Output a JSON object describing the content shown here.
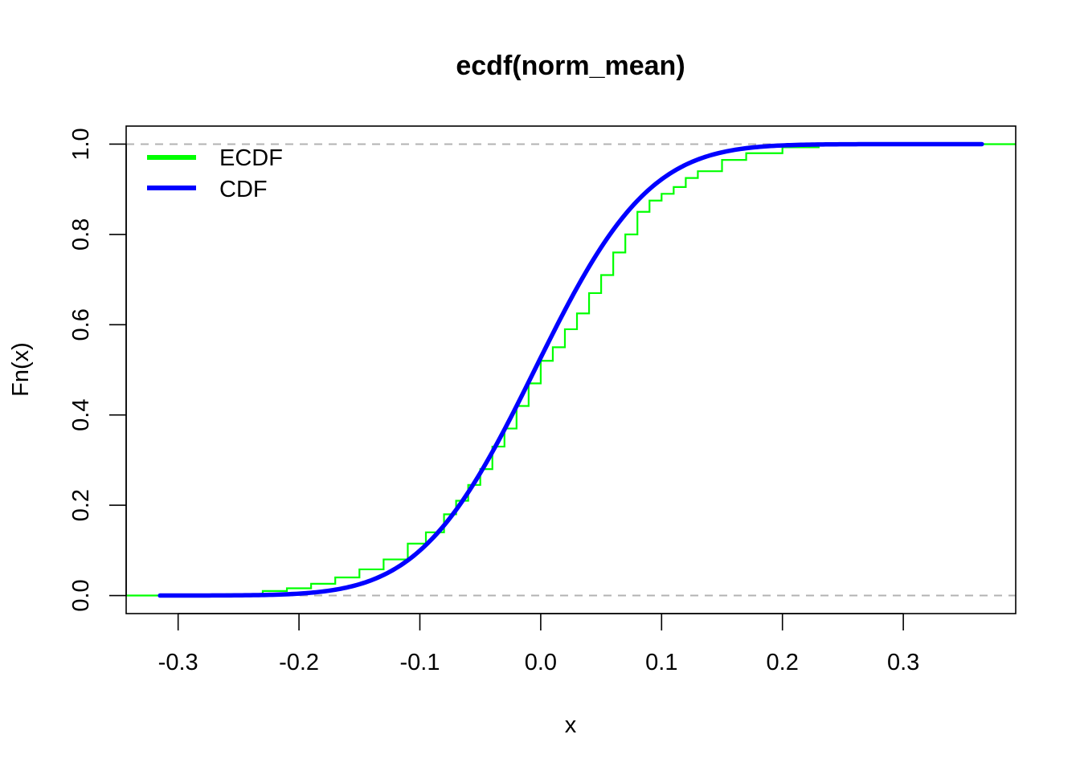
{
  "chart_data": {
    "type": "line",
    "title": "ecdf(norm_mean)",
    "xlabel": "x",
    "ylabel": "Fn(x)",
    "xlim": [
      -0.343,
      0.393
    ],
    "ylim": [
      -0.04,
      1.04
    ],
    "x_ticks": [
      "-0.3",
      "-0.2",
      "-0.1",
      "0.0",
      "0.1",
      "0.2",
      "0.3"
    ],
    "x_tick_values": [
      -0.3,
      -0.2,
      -0.1,
      0.0,
      0.1,
      0.2,
      0.3
    ],
    "y_ticks": [
      "0.0",
      "0.2",
      "0.4",
      "0.6",
      "0.8",
      "1.0"
    ],
    "y_tick_values": [
      0.0,
      0.2,
      0.4,
      0.6,
      0.8,
      1.0
    ],
    "reference_lines": [
      0.0,
      1.0
    ],
    "grid": false,
    "legend": {
      "position": "top-left",
      "entries": [
        "ECDF",
        "CDF"
      ]
    },
    "series": [
      {
        "name": "ECDF",
        "color": "#00ff00",
        "points": [
          [
            -0.343,
            0.0
          ],
          [
            -0.315,
            0.0
          ],
          [
            -0.26,
            0.003
          ],
          [
            -0.23,
            0.01
          ],
          [
            -0.21,
            0.016
          ],
          [
            -0.19,
            0.026
          ],
          [
            -0.17,
            0.04
          ],
          [
            -0.15,
            0.058
          ],
          [
            -0.13,
            0.08
          ],
          [
            -0.11,
            0.115
          ],
          [
            -0.095,
            0.14
          ],
          [
            -0.08,
            0.18
          ],
          [
            -0.07,
            0.21
          ],
          [
            -0.06,
            0.245
          ],
          [
            -0.05,
            0.28
          ],
          [
            -0.04,
            0.33
          ],
          [
            -0.03,
            0.37
          ],
          [
            -0.02,
            0.42
          ],
          [
            -0.01,
            0.47
          ],
          [
            0.0,
            0.52
          ],
          [
            0.01,
            0.55
          ],
          [
            0.02,
            0.59
          ],
          [
            0.03,
            0.625
          ],
          [
            0.04,
            0.67
          ],
          [
            0.05,
            0.71
          ],
          [
            0.06,
            0.76
          ],
          [
            0.07,
            0.8
          ],
          [
            0.08,
            0.85
          ],
          [
            0.09,
            0.875
          ],
          [
            0.1,
            0.89
          ],
          [
            0.11,
            0.905
          ],
          [
            0.12,
            0.925
          ],
          [
            0.13,
            0.94
          ],
          [
            0.15,
            0.965
          ],
          [
            0.17,
            0.98
          ],
          [
            0.2,
            0.993
          ],
          [
            0.23,
            0.998
          ],
          [
            0.365,
            1.0
          ],
          [
            0.393,
            1.0
          ]
        ]
      },
      {
        "name": "CDF",
        "color": "#0000ff",
        "distribution": "normal",
        "mean": -0.005,
        "sd": 0.074,
        "x_range": [
          -0.315,
          0.365
        ]
      }
    ]
  }
}
